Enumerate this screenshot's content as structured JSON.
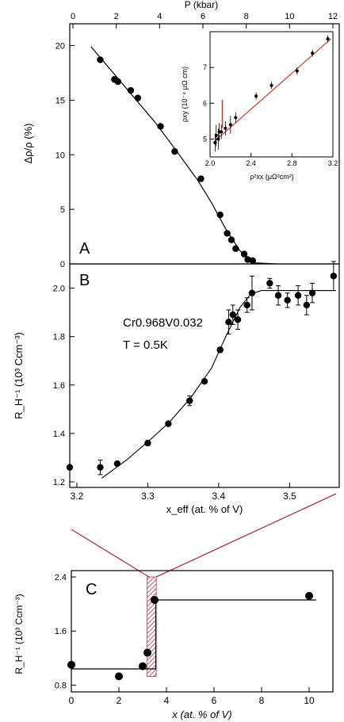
{
  "colors": {
    "axis": "#000000",
    "fit_line": "#000000",
    "inset_fit": "#c0392b",
    "zoom_lines": "#a83246",
    "hatch": "#b03040",
    "marker": "#000000"
  },
  "chart_data": [
    {
      "panel": "A",
      "type": "scatter",
      "panel_label": "A",
      "ylabel": "Δρ/ρ (%)",
      "x2label": "P (kbar)",
      "xlim": [
        3.19,
        3.57
      ],
      "ylim": [
        0,
        22
      ],
      "x2lim": [
        0,
        12
      ],
      "yticks": [
        0,
        5,
        10,
        15,
        20
      ],
      "x2ticks": [
        0,
        2,
        4,
        6,
        8,
        10,
        12
      ],
      "points": [
        {
          "x": 3.233,
          "y": 18.7
        },
        {
          "x": 3.253,
          "y": 16.9
        },
        {
          "x": 3.258,
          "y": 16.7
        },
        {
          "x": 3.276,
          "y": 15.9
        },
        {
          "x": 3.286,
          "y": 15.2
        },
        {
          "x": 3.318,
          "y": 12.6
        },
        {
          "x": 3.338,
          "y": 10.3
        },
        {
          "x": 3.375,
          "y": 7.8
        },
        {
          "x": 3.402,
          "y": 4.5
        },
        {
          "x": 3.412,
          "y": 2.8
        },
        {
          "x": 3.418,
          "y": 2.2
        },
        {
          "x": 3.424,
          "y": 1.4
        },
        {
          "x": 3.436,
          "y": 0.9
        },
        {
          "x": 3.441,
          "y": 0.4
        },
        {
          "x": 3.448,
          "y": 0.3
        }
      ],
      "fit_curve": [
        {
          "x": 3.22,
          "y": 19.9
        },
        {
          "x": 3.25,
          "y": 17.6
        },
        {
          "x": 3.28,
          "y": 15.3
        },
        {
          "x": 3.31,
          "y": 13.0
        },
        {
          "x": 3.34,
          "y": 10.4
        },
        {
          "x": 3.37,
          "y": 7.7
        },
        {
          "x": 3.39,
          "y": 5.6
        },
        {
          "x": 3.41,
          "y": 3.2
        },
        {
          "x": 3.43,
          "y": 1.2
        },
        {
          "x": 3.45,
          "y": 0.1
        },
        {
          "x": 3.48,
          "y": 0.0
        }
      ],
      "inset": {
        "type": "scatter",
        "xlabel": "ρ²xx (μΩ²cm²)",
        "ylabel": "ρxy (10⁻⁴ μΩ cm)",
        "xlim": [
          2.0,
          3.2
        ],
        "ylim": [
          4.5,
          8.0
        ],
        "xticks": [
          2.0,
          2.4,
          2.8,
          3.2
        ],
        "yticks": [
          5,
          6,
          7
        ],
        "points": [
          {
            "x": 2.05,
            "y": 4.9,
            "err": 0.25
          },
          {
            "x": 2.06,
            "y": 5.1,
            "err": 0.3
          },
          {
            "x": 2.08,
            "y": 5.0,
            "err": 0.3
          },
          {
            "x": 2.09,
            "y": 5.2,
            "err": 0.25
          },
          {
            "x": 2.11,
            "y": 5.2,
            "err": 0.2
          },
          {
            "x": 2.15,
            "y": 5.3,
            "err": 0.2
          },
          {
            "x": 2.2,
            "y": 5.4,
            "err": 0.25
          },
          {
            "x": 2.25,
            "y": 5.6,
            "err": 0.15
          },
          {
            "x": 2.45,
            "y": 6.2,
            "err": 0.1
          },
          {
            "x": 2.6,
            "y": 6.5,
            "err": 0.1
          },
          {
            "x": 2.85,
            "y": 6.9,
            "err": 0.1
          },
          {
            "x": 3.0,
            "y": 7.4,
            "err": 0.1
          },
          {
            "x": 3.15,
            "y": 7.8,
            "err": 0.1
          }
        ],
        "fit_line": [
          {
            "x": 2.03,
            "y": 4.9
          },
          {
            "x": 3.18,
            "y": 7.8
          }
        ],
        "marker_x": 2.12
      }
    },
    {
      "panel": "B",
      "type": "scatter",
      "panel_label": "B",
      "xlabel": "x_eff (at. % of V)",
      "ylabel": "R_H⁻¹ (10³ Ccm⁻³)",
      "annotation_formula": "Cr0.968V0.032",
      "annotation_temperature": "T = 0.5K",
      "xlim": [
        3.19,
        3.57
      ],
      "ylim": [
        1.2,
        2.1
      ],
      "xticks": [
        3.2,
        3.3,
        3.4,
        3.5
      ],
      "yticks": [
        1.2,
        1.4,
        1.6,
        1.8,
        2.0
      ],
      "points": [
        {
          "x": 3.19,
          "y": 1.26,
          "err": 0
        },
        {
          "x": 3.233,
          "y": 1.26,
          "err": 0.03
        },
        {
          "x": 3.257,
          "y": 1.275,
          "err": 0
        },
        {
          "x": 3.3,
          "y": 1.36,
          "err": 0
        },
        {
          "x": 3.329,
          "y": 1.44,
          "err": 0
        },
        {
          "x": 3.359,
          "y": 1.535,
          "err": 0.02
        },
        {
          "x": 3.38,
          "y": 1.615,
          "err": 0
        },
        {
          "x": 3.402,
          "y": 1.745,
          "err": 0.01
        },
        {
          "x": 3.414,
          "y": 1.86,
          "err": 0.05
        },
        {
          "x": 3.42,
          "y": 1.89,
          "err": 0.04
        },
        {
          "x": 3.427,
          "y": 1.87,
          "err": 0.04
        },
        {
          "x": 3.44,
          "y": 1.93,
          "err": 0.03
        },
        {
          "x": 3.447,
          "y": 1.98,
          "err": 0.07
        },
        {
          "x": 3.472,
          "y": 2.02,
          "err": 0.02
        },
        {
          "x": 3.484,
          "y": 1.97,
          "err": 0.04
        },
        {
          "x": 3.497,
          "y": 1.95,
          "err": 0.03
        },
        {
          "x": 3.512,
          "y": 1.97,
          "err": 0.04
        },
        {
          "x": 3.524,
          "y": 1.93,
          "err": 0.04
        },
        {
          "x": 3.532,
          "y": 1.98,
          "err": 0.04
        },
        {
          "x": 3.562,
          "y": 2.05,
          "err": 0.06
        }
      ],
      "fit_curve": [
        {
          "x": 3.235,
          "y": 1.215
        },
        {
          "x": 3.27,
          "y": 1.29
        },
        {
          "x": 3.3,
          "y": 1.365
        },
        {
          "x": 3.33,
          "y": 1.445
        },
        {
          "x": 3.36,
          "y": 1.545
        },
        {
          "x": 3.39,
          "y": 1.67
        },
        {
          "x": 3.41,
          "y": 1.8
        },
        {
          "x": 3.43,
          "y": 1.92
        },
        {
          "x": 3.445,
          "y": 1.975
        },
        {
          "x": 3.46,
          "y": 1.99
        },
        {
          "x": 3.5,
          "y": 1.99
        },
        {
          "x": 3.56,
          "y": 1.99
        }
      ],
      "dashed_tail": [
        {
          "x": 3.5,
          "y": 1.99
        },
        {
          "x": 3.565,
          "y": 1.99
        }
      ]
    },
    {
      "panel": "C",
      "type": "scatter",
      "panel_label": "C",
      "xlabel": "x (at. % of V)",
      "ylabel": "R_H⁻¹ (10³ Ccm⁻³)",
      "xlim": [
        0,
        11
      ],
      "ylim": [
        0.7,
        2.4
      ],
      "xticks": [
        0,
        2,
        4,
        6,
        8,
        10
      ],
      "yticks": [
        0.8,
        1.6,
        2.4
      ],
      "points": [
        {
          "x": 0,
          "y": 1.1
        },
        {
          "x": 2,
          "y": 0.93
        },
        {
          "x": 3,
          "y": 1.08
        },
        {
          "x": 3.2,
          "y": 1.28
        },
        {
          "x": 3.5,
          "y": 2.06
        },
        {
          "x": 10,
          "y": 2.12
        }
      ],
      "step_line": [
        {
          "x": 0,
          "y": 1.04
        },
        {
          "x": 3.55,
          "y": 1.04
        },
        {
          "x": 3.55,
          "y": 2.06
        },
        {
          "x": 10.3,
          "y": 2.06
        }
      ],
      "hatch_band": [
        3.19,
        3.57
      ]
    }
  ]
}
